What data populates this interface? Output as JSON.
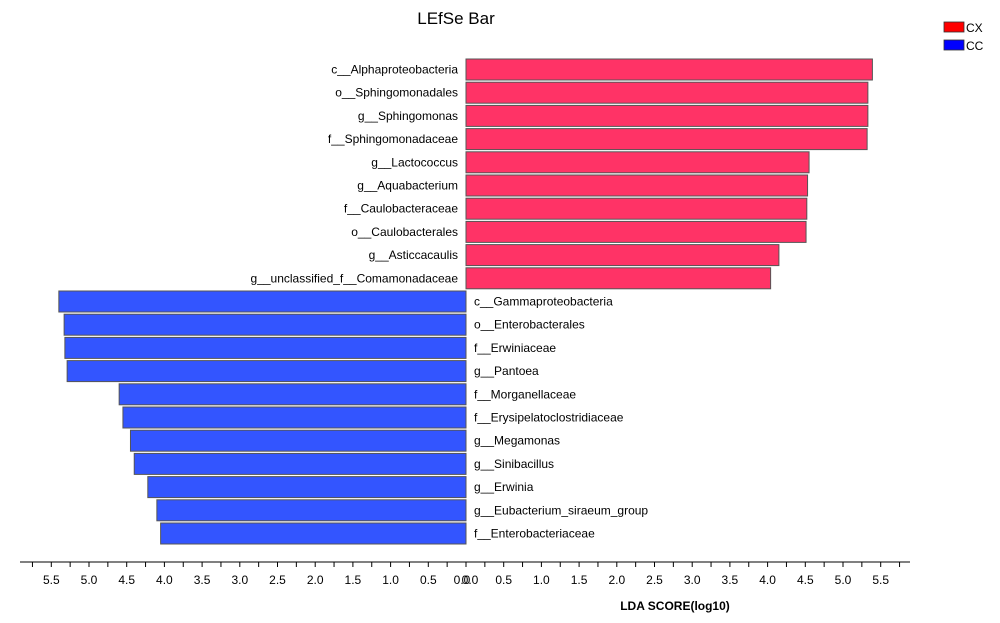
{
  "chart_data": {
    "type": "bar",
    "orientation": "horizontal-diverging",
    "title": "LEfSe Bar",
    "xlabel": "LDA SCORE(log10)",
    "ylabel": "",
    "xlim": [
      -6,
      6
    ],
    "ticks": [
      "5.5",
      "5.0",
      "4.5",
      "4.0",
      "3.5",
      "3.0",
      "2.5",
      "2.0",
      "1.5",
      "1.0",
      "0.5",
      "0.0",
      "0.0",
      "0.5",
      "1.0",
      "1.5",
      "2.0",
      "2.5",
      "3.0",
      "3.5",
      "4.0",
      "4.5",
      "5.0",
      "5.5"
    ],
    "legend_position": "top-right",
    "series": [
      {
        "name": "CX",
        "legend_color": "#ff0000",
        "bar_color": "#ff3366",
        "direction": "right",
        "categories": [
          "c__Alphaproteobacteria",
          "o__Sphingomonadales",
          "g__Sphingomonas",
          "f__Sphingomonadaceae",
          "g__Lactococcus",
          "g__Aquabacterium",
          "f__Caulobacteraceae",
          "o__Caulobacterales",
          "g__Asticcacaulis",
          "g__unclassified_f__Comamonadaceae"
        ],
        "values": [
          5.39,
          5.33,
          5.33,
          5.32,
          4.55,
          4.53,
          4.52,
          4.51,
          4.15,
          4.04
        ]
      },
      {
        "name": "CC",
        "legend_color": "#0000ff",
        "bar_color": "#3355ff",
        "direction": "left",
        "categories": [
          "c__Gammaproteobacteria",
          "o__Enterobacterales",
          "f__Erwiniaceae",
          "g__Pantoea",
          "f__Morganellaceae",
          "f__Erysipelatoclostridiaceae",
          "g__Megamonas",
          "g__Sinibacillus",
          "g__Erwinia",
          "g__Eubacterium_siraeum_group",
          "f__Enterobacteriaceae"
        ],
        "values": [
          5.4,
          5.33,
          5.32,
          5.29,
          4.6,
          4.55,
          4.45,
          4.4,
          4.22,
          4.1,
          4.05
        ]
      }
    ]
  }
}
